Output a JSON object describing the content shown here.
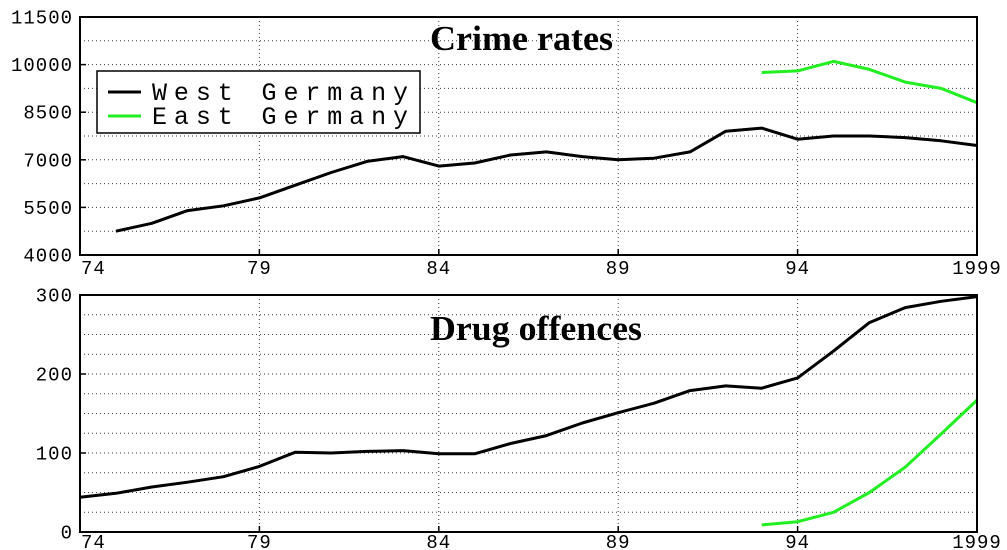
{
  "chart_data": [
    {
      "type": "line",
      "title": "Crime rates",
      "xlim": [
        1974,
        1999
      ],
      "ylim": [
        4000,
        11500
      ],
      "xticks": [
        1974,
        1979,
        1984,
        1989,
        1994,
        1999
      ],
      "xtick_labels": [
        "74",
        "79",
        "84",
        "89",
        "94",
        "1999"
      ],
      "yticks": [
        4000,
        5500,
        7000,
        8500,
        10000,
        11500
      ],
      "grid": true,
      "legend": "top-left",
      "series": [
        {
          "name": "West Germany",
          "color": "#000000",
          "x": [
            1975,
            1976,
            1977,
            1978,
            1979,
            1980,
            1981,
            1982,
            1983,
            1984,
            1985,
            1986,
            1987,
            1988,
            1989,
            1990,
            1991,
            1992,
            1993,
            1994,
            1995,
            1996,
            1997,
            1998,
            1999
          ],
          "y": [
            4750,
            5000,
            5400,
            5550,
            5800,
            6200,
            6600,
            6950,
            7100,
            6800,
            6900,
            7150,
            7250,
            7100,
            7000,
            7050,
            7250,
            7900,
            8000,
            7650,
            7750,
            7750,
            7700,
            7600,
            7450
          ]
        },
        {
          "name": "East Germany",
          "color": "#22ee22",
          "x": [
            1993,
            1994,
            1995,
            1996,
            1997,
            1998,
            1999
          ],
          "y": [
            9750,
            9800,
            10100,
            9850,
            9450,
            9250,
            8800
          ]
        }
      ]
    },
    {
      "type": "line",
      "title": "Drug offences",
      "xlim": [
        1974,
        1999
      ],
      "ylim": [
        0,
        300
      ],
      "xticks": [
        1974,
        1979,
        1984,
        1989,
        1994,
        1999
      ],
      "xtick_labels": [
        "74",
        "79",
        "84",
        "89",
        "94",
        "1999"
      ],
      "yticks": [
        0,
        100,
        200,
        300
      ],
      "grid": true,
      "series": [
        {
          "color": "#000000",
          "x": [
            1974,
            1975,
            1976,
            1977,
            1978,
            1979,
            1980,
            1981,
            1982,
            1983,
            1984,
            1985,
            1986,
            1987,
            1988,
            1989,
            1990,
            1991,
            1992,
            1993,
            1994,
            1995,
            1996,
            1997,
            1998,
            1999
          ],
          "y": [
            44,
            49,
            57,
            63,
            70,
            83,
            101,
            100,
            102,
            103,
            99,
            99,
            112,
            122,
            138,
            151,
            163,
            179,
            185,
            182,
            195,
            229,
            265,
            284,
            292,
            298
          ]
        },
        {
          "color": "#22ee22",
          "x": [
            1993,
            1994,
            1995,
            1996,
            1997,
            1998,
            1999
          ],
          "y": [
            9,
            13,
            25,
            50,
            82,
            124,
            167
          ]
        }
      ]
    }
  ]
}
